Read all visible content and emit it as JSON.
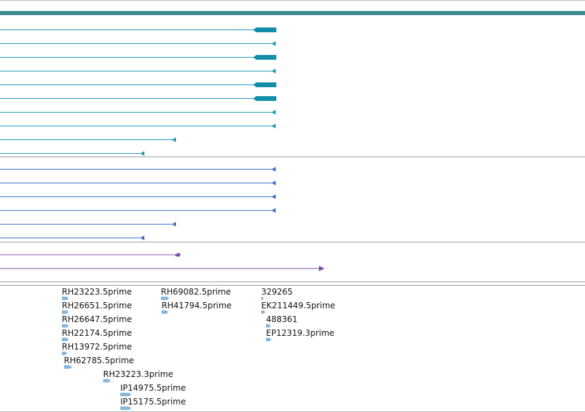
{
  "colors": {
    "scale_bar": "#3a8a8c",
    "transcript_track": "#1a9ab3",
    "transcript_track_alt": "#138ea8",
    "protein_track": "#3a6fc2",
    "other_track": "#7b52a8",
    "est_feature": "#86b6dc",
    "divider": "#9a9a9a"
  },
  "tracks": [
    {
      "id": "transcript",
      "features": 10
    },
    {
      "id": "protein",
      "features": 6
    },
    {
      "id": "other",
      "features": 2
    }
  ],
  "est_labels": [
    "RH23223.5prime",
    "RH26651.5prime",
    "RH26647.5prime",
    "RH22174.5prime",
    "RH13972.5prime",
    "RH62785.5prime",
    "RH23223.3prime",
    "IP14975.5prime",
    "IP15175.5prime",
    "RH69082.5prime",
    "RH41794.5prime",
    "329265",
    "EK211449.5prime",
    "488361",
    "EP12319.3prime"
  ]
}
